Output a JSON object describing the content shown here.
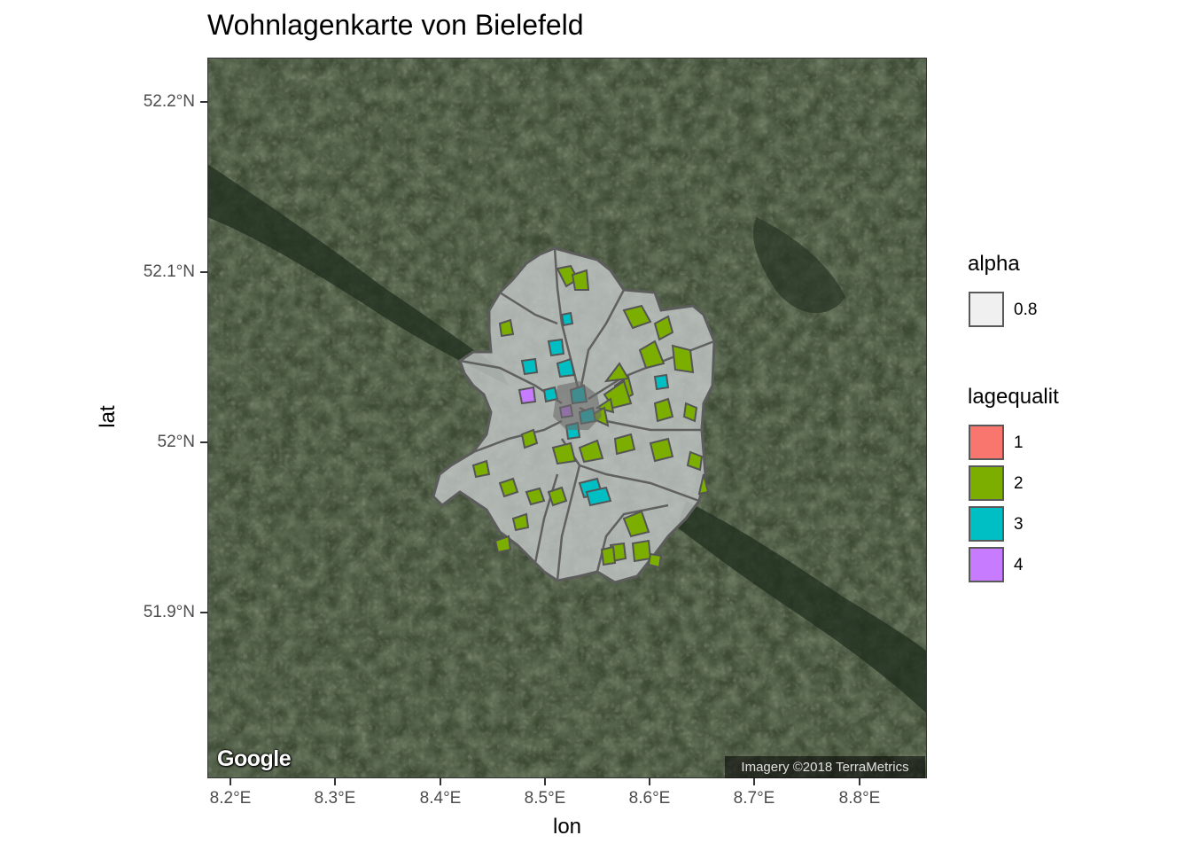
{
  "title": "Wohnlagenkarte von Bielefeld",
  "axes": {
    "xlabel": "lon",
    "ylabel": "lat",
    "x_ticks": [
      "8.2°E",
      "8.3°E",
      "8.4°E",
      "8.5°E",
      "8.6°E",
      "8.7°E",
      "8.8°E"
    ],
    "y_ticks": [
      "52.2°N",
      "52.1°N",
      "52°N",
      "51.9°N"
    ],
    "x_tick_values": [
      8.2,
      8.3,
      8.4,
      8.5,
      8.6,
      8.7,
      8.8
    ],
    "y_tick_values": [
      52.2,
      52.1,
      52.0,
      51.9
    ]
  },
  "legend_alpha": {
    "title": "alpha",
    "entries": [
      {
        "label": "0.8",
        "color": "#f0f0f0"
      }
    ]
  },
  "legend_quality": {
    "title": "lagequalit",
    "entries": [
      {
        "label": "1",
        "color": "#F8766D"
      },
      {
        "label": "2",
        "color": "#7CAE00"
      },
      {
        "label": "3",
        "color": "#00BFC4"
      },
      {
        "label": "4",
        "color": "#C77CFF"
      }
    ]
  },
  "attribution": {
    "logo": "Google",
    "imagery": "Imagery ©2018 TerraMetrics"
  },
  "colors": {
    "satellite_base": "#3d4a34",
    "district_fill": "#c8cccc",
    "district_border": "#5c5c5c"
  }
}
